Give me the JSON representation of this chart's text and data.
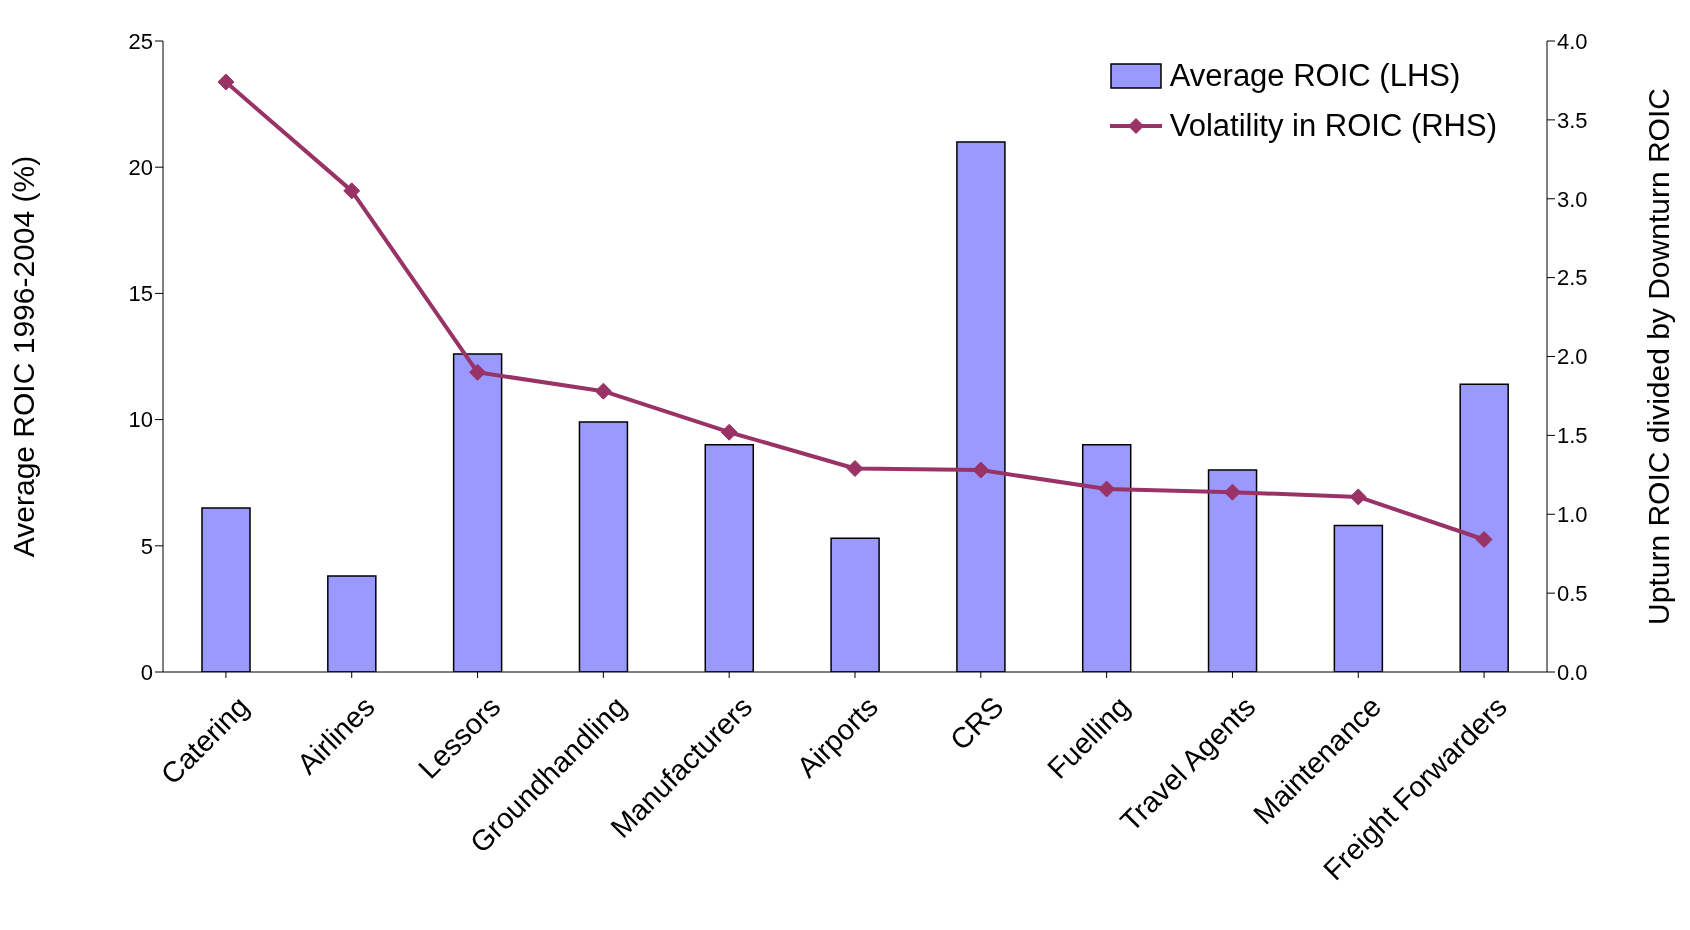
{
  "chart_data": {
    "type": "bar",
    "ylabel": "Average ROIC 1996-2004 (%)",
    "y2label": "Upturn ROIC divided by Downturn ROIC",
    "categories": [
      "Catering",
      "Airlines",
      "Lessors",
      "Groundhandling",
      "Manufacturers",
      "Airports",
      "CRS",
      "Fuelling",
      "Travel Agents",
      "Maintenance",
      "Freight Forwarders"
    ],
    "series": [
      {
        "name": "Average ROIC (LHS)",
        "color": "#9999ff",
        "values": [
          6.5,
          3.8,
          12.6,
          9.9,
          9.0,
          5.3,
          21.0,
          9.0,
          8.0,
          5.8,
          11.4
        ]
      },
      {
        "name": "Volatility in ROIC (RHS)",
        "type": "line",
        "axis": "y2",
        "color": "#993366",
        "marker": "diamond",
        "values": [
          3.74,
          3.05,
          1.9,
          1.78,
          1.52,
          1.29,
          1.28,
          1.16,
          1.14,
          1.11,
          0.84
        ]
      }
    ],
    "ylim": [
      0,
      25
    ],
    "yticks": [
      0,
      5,
      10,
      15,
      20,
      25
    ],
    "y2lim": [
      0,
      4
    ],
    "y2ticks": [
      {
        "value": 0,
        "label": "0.0"
      },
      0.5,
      {
        "value": 1,
        "label": "1.0"
      },
      1.5,
      {
        "value": 2,
        "label": "2.0"
      },
      2.5,
      {
        "value": 3,
        "label": "3.0"
      },
      3.5,
      {
        "value": 4,
        "label": "4.0"
      }
    ],
    "legend": "top right",
    "grid": false
  }
}
